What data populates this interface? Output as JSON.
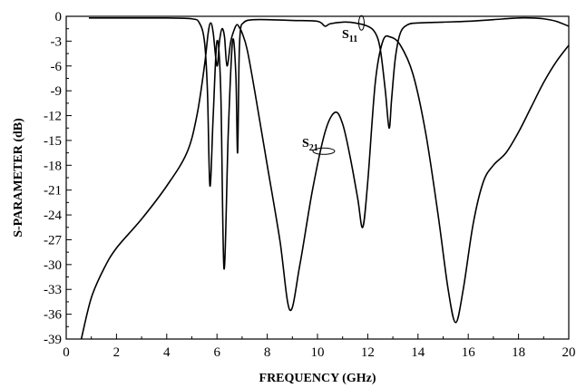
{
  "chart_data": {
    "type": "line",
    "xlabel": "FREQUENCY (GHz)",
    "ylabel": "S-PARAMETER (dB)",
    "xlim": [
      0,
      20
    ],
    "ylim": [
      -39,
      0
    ],
    "xticks": [
      0,
      2,
      4,
      6,
      8,
      10,
      12,
      14,
      16,
      18,
      20
    ],
    "yticks": [
      0,
      -3,
      -6,
      -9,
      -12,
      -15,
      -18,
      -21,
      -24,
      -27,
      -30,
      -33,
      -36,
      -39
    ],
    "grid": false,
    "annotations": [
      {
        "base": "S",
        "sub": "11",
        "target": "S11 curve near 11.8 GHz"
      },
      {
        "base": "S",
        "sub": "21",
        "target": "S21 curve near 10.3 GHz"
      }
    ],
    "series": [
      {
        "name": "S11",
        "x": [
          0.9,
          2,
          3,
          4,
          5,
          5.3,
          5.5,
          5.62,
          5.72,
          5.85,
          6.0,
          6.15,
          6.28,
          6.45,
          6.62,
          6.75,
          6.82,
          6.88,
          6.94,
          7.05,
          7.2,
          7.5,
          8,
          9,
          10,
          10.3,
          10.5,
          11,
          11.5,
          12,
          12.3,
          12.5,
          12.7,
          12.85,
          12.95,
          13.1,
          13.3,
          13.6,
          14,
          15,
          16,
          17,
          18,
          18.5,
          19,
          19.5,
          20
        ],
        "y": [
          -0.2,
          -0.2,
          -0.2,
          -0.2,
          -0.3,
          -0.8,
          -3,
          -9,
          -20.5,
          -12,
          -3,
          -9,
          -30.5,
          -14,
          -3,
          -7,
          -16.5,
          -5,
          -1.5,
          -0.8,
          -0.5,
          -0.4,
          -0.4,
          -0.5,
          -0.6,
          -1.2,
          -0.9,
          -0.7,
          -0.8,
          -1.2,
          -2,
          -4,
          -9,
          -13.5,
          -10,
          -5,
          -2,
          -1,
          -0.8,
          -0.7,
          -0.6,
          -0.4,
          -0.2,
          -0.2,
          -0.3,
          -0.6,
          -1.2
        ]
      },
      {
        "name": "S21",
        "x": [
          0.6,
          1,
          1.5,
          2,
          3,
          4,
          4.8,
          5.2,
          5.5,
          5.65,
          5.75,
          5.85,
          6.0,
          6.1,
          6.2,
          6.3,
          6.4,
          6.55,
          6.7,
          6.8,
          6.9,
          7.0,
          7.2,
          7.5,
          8,
          8.5,
          8.9,
          9.3,
          9.8,
          10.3,
          10.7,
          11,
          11.3,
          11.6,
          11.8,
          12,
          12.3,
          12.6,
          12.9,
          13.3,
          13.8,
          14.3,
          14.8,
          15.2,
          15.5,
          15.8,
          16.2,
          16.6,
          17,
          17.5,
          18,
          18.5,
          19,
          19.5,
          20
        ],
        "y": [
          -39,
          -34,
          -30.5,
          -28,
          -24.5,
          -20.5,
          -16.5,
          -12,
          -6,
          -2,
          -0.8,
          -2,
          -6,
          -3,
          -1.5,
          -2.5,
          -6,
          -3,
          -1.5,
          -1.0,
          -1.4,
          -2,
          -4,
          -9,
          -18,
          -27,
          -35.5,
          -30,
          -21,
          -14,
          -11.6,
          -13,
          -17,
          -22,
          -25.5,
          -20,
          -8,
          -3,
          -2.5,
          -3.5,
          -7,
          -14,
          -24,
          -33,
          -37,
          -33,
          -25,
          -20,
          -18,
          -16.5,
          -14,
          -11,
          -8,
          -5.5,
          -3.5
        ]
      }
    ]
  }
}
